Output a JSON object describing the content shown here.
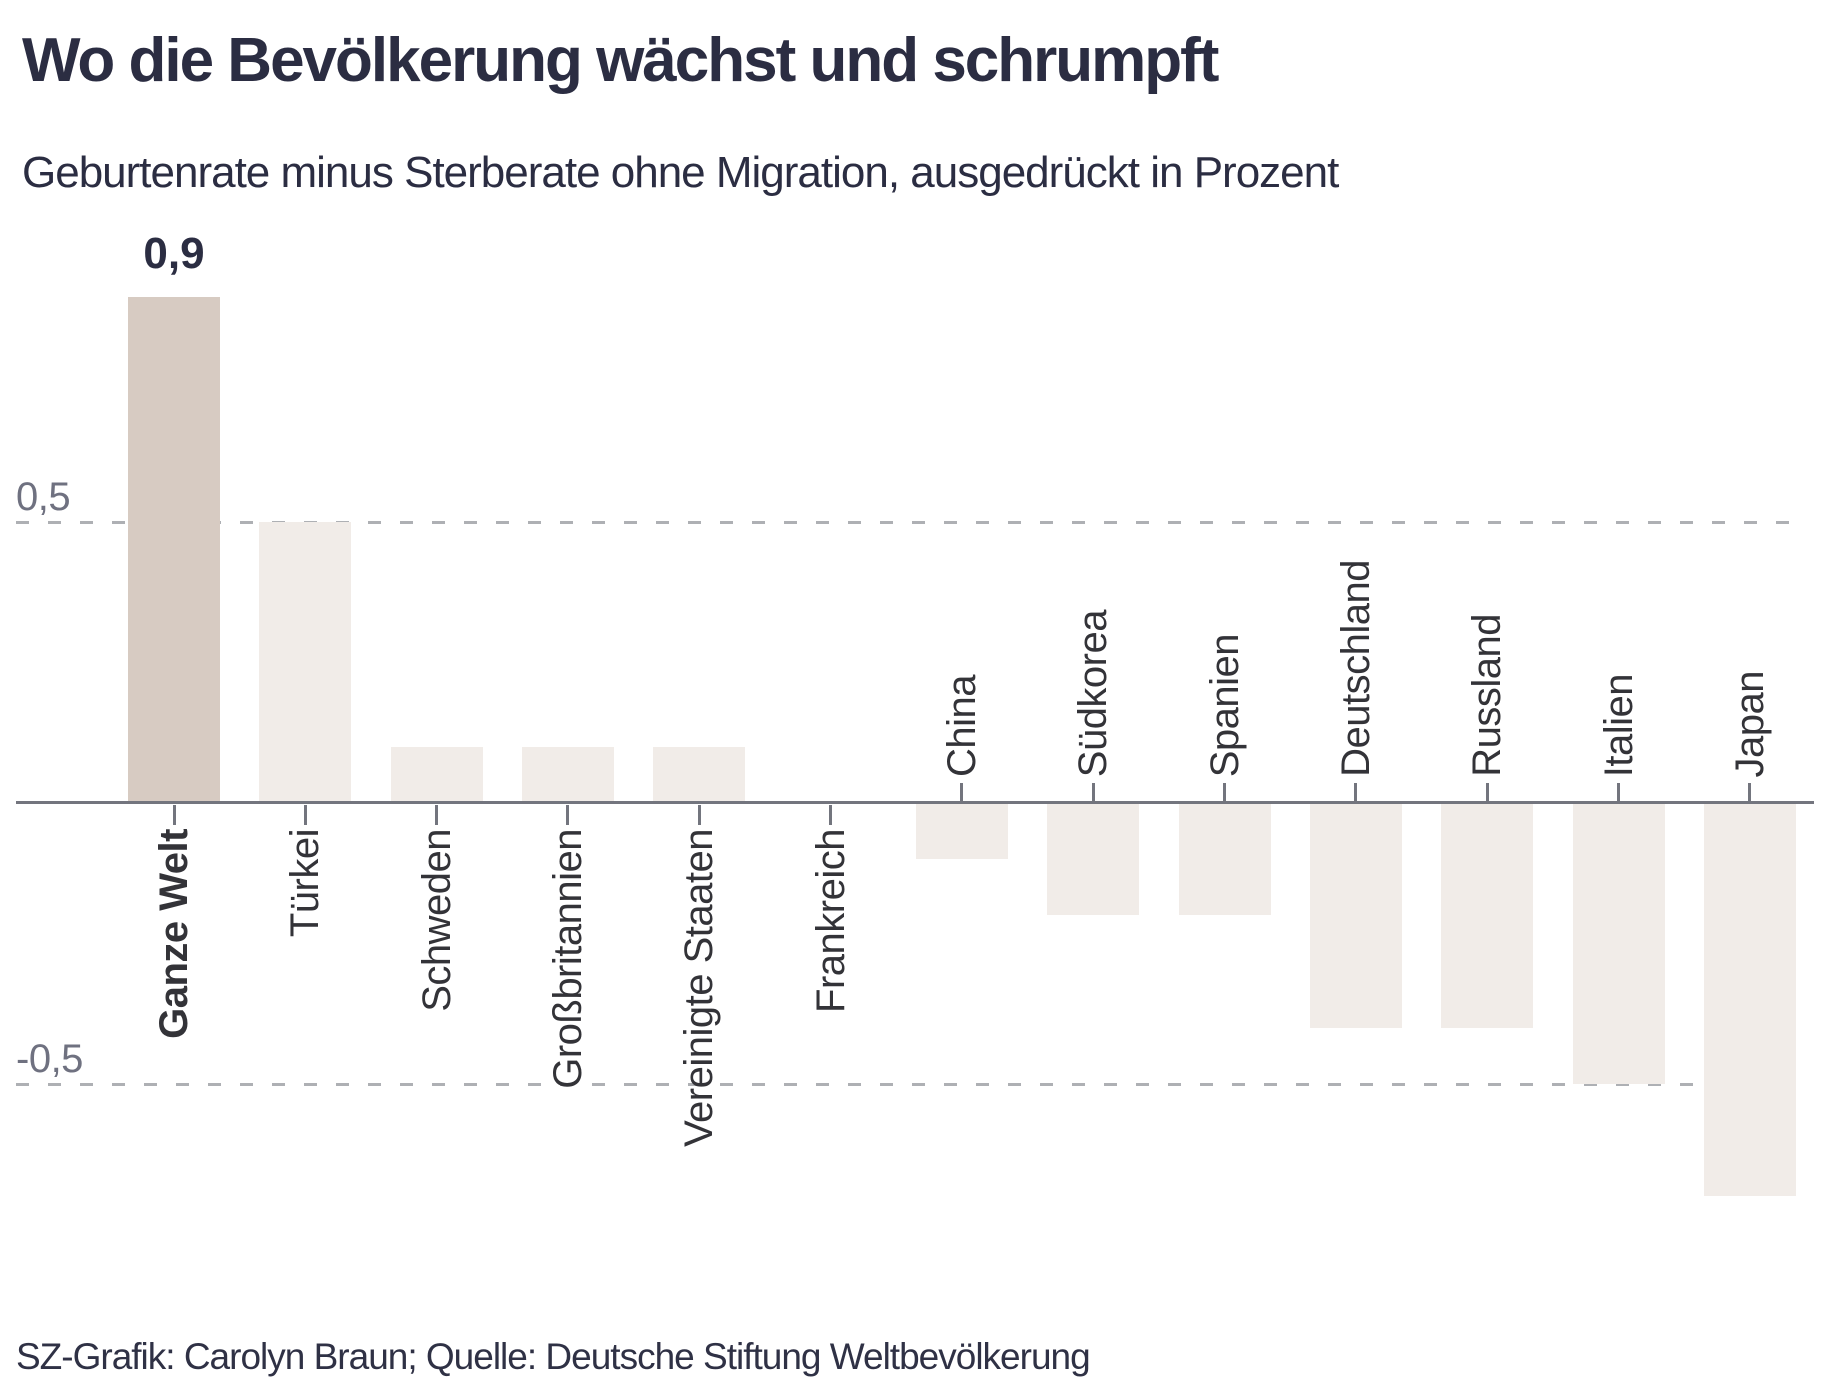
{
  "chart_data": {
    "type": "bar",
    "title": "Wo die Bevölkerung wächst und schrumpft",
    "subtitle": "Geburtenrate minus Sterberate ohne Migration, ausgedrückt in Prozent",
    "source": "SZ-Grafik: Carolyn Braun; Quelle: Deutsche Stiftung Weltbevölkerung",
    "categories": [
      "Ganze Welt",
      "Türkei",
      "Schweden",
      "Großbritannien",
      "Vereinigte Staaten",
      "Frankreich",
      "China",
      "Südkorea",
      "Spanien",
      "Deutschland",
      "Russland",
      "Italien",
      "Japan"
    ],
    "values": [
      0.9,
      0.5,
      0.1,
      0.1,
      0.1,
      0.0,
      -0.1,
      -0.2,
      -0.2,
      -0.4,
      -0.4,
      -0.5,
      -0.7
    ],
    "highlight_index": 0,
    "value_annotation": {
      "index": 0,
      "text": "0,9"
    },
    "yticks": [
      {
        "value": 0.5,
        "label": "0,5"
      },
      {
        "value": -0.5,
        "label": "-0,5"
      }
    ],
    "ylim": [
      -0.75,
      1.0
    ],
    "xlabel": "",
    "ylabel": "",
    "grid": "dashed horizontal gridlines at 0.5 and -0.5",
    "legend": "none",
    "colors": {
      "bar_default": "#f1ece8",
      "bar_highlight": "#d7cbc2",
      "axis": "#73757e",
      "gridline": "#aeb0b4",
      "heading_text": "#2b2d42",
      "category_text": "#333338",
      "grid_label_text": "#6f7180",
      "background": "#ffffff"
    }
  }
}
